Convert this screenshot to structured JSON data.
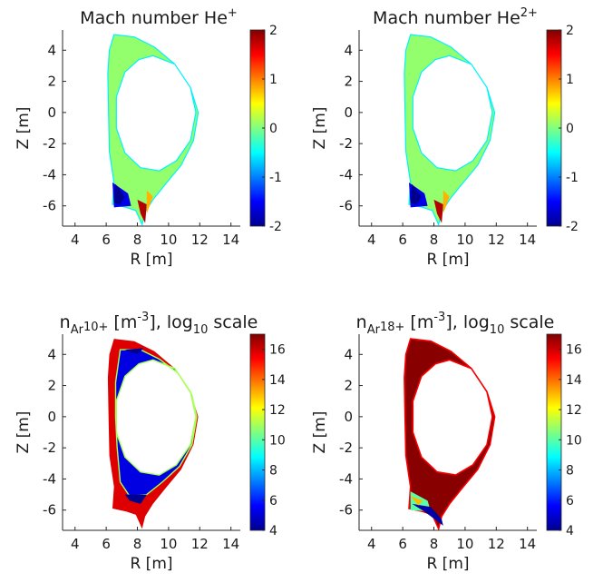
{
  "chart_data": [
    {
      "type": "heatmap",
      "title": {
        "pre": "Mach number He",
        "sup": "+",
        "sub": "",
        "post": ""
      },
      "xlabel": "R [m]",
      "ylabel": "Z [m]",
      "x_ticks": [
        4,
        6,
        8,
        10,
        12,
        14
      ],
      "y_ticks": [
        -6,
        -4,
        -2,
        0,
        2,
        4
      ],
      "xlim": [
        3.2,
        14.6
      ],
      "ylim": [
        -7.3,
        5.3
      ],
      "colorbar": {
        "min": -2,
        "max": 2,
        "ticks": [
          -2,
          -1,
          0,
          1,
          2
        ]
      },
      "field": "mach"
    },
    {
      "type": "heatmap",
      "title": {
        "pre": "Mach number He",
        "sup": "2+",
        "sub": "",
        "post": ""
      },
      "xlabel": "R [m]",
      "ylabel": "Z [m]",
      "x_ticks": [
        4,
        6,
        8,
        10,
        12,
        14
      ],
      "y_ticks": [
        -6,
        -4,
        -2,
        0,
        2,
        4
      ],
      "xlim": [
        3.2,
        14.6
      ],
      "ylim": [
        -7.3,
        5.3
      ],
      "colorbar": {
        "min": -2,
        "max": 2,
        "ticks": [
          -2,
          -1,
          0,
          1,
          2
        ]
      },
      "field": "mach"
    },
    {
      "type": "heatmap",
      "title": {
        "pre": "n",
        "sub": "Ar",
        "subsup": "10+",
        "mid": " [m",
        "sup": "-3",
        "post": "], log",
        "sub2": "10",
        "post2": " scale"
      },
      "xlabel": "R [m]",
      "ylabel": "Z [m]",
      "x_ticks": [
        4,
        6,
        8,
        10,
        12,
        14
      ],
      "y_ticks": [
        -6,
        -4,
        -2,
        0,
        2,
        4
      ],
      "xlim": [
        3.2,
        14.6
      ],
      "ylim": [
        -7.3,
        5.3
      ],
      "colorbar": {
        "min": 4,
        "max": 17,
        "ticks": [
          4,
          6,
          8,
          10,
          12,
          14,
          16
        ]
      },
      "field": "ar10"
    },
    {
      "type": "heatmap",
      "title": {
        "pre": "n",
        "sub": "Ar",
        "subsup": "18+",
        "mid": " [m",
        "sup": "-3",
        "post": "], log",
        "sub2": "10",
        "post2": " scale"
      },
      "xlabel": "R [m]",
      "ylabel": "Z [m]",
      "x_ticks": [
        4,
        6,
        8,
        10,
        12,
        14
      ],
      "y_ticks": [
        -6,
        -4,
        -2,
        0,
        2,
        4
      ],
      "xlim": [
        3.2,
        14.6
      ],
      "ylim": [
        -7.3,
        5.3
      ],
      "colorbar": {
        "min": 4,
        "max": 17,
        "ticks": [
          4,
          6,
          8,
          10,
          12,
          14,
          16
        ]
      },
      "field": "ar18"
    }
  ]
}
